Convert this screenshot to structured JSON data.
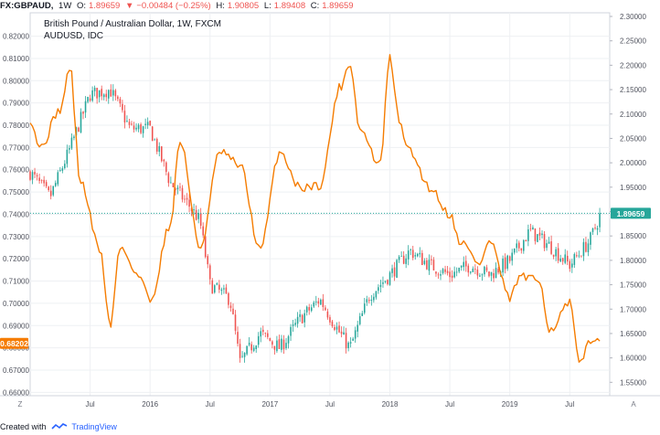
{
  "header": {
    "symbol": "FX:GBPAUD,",
    "interval": "1W",
    "open_label": "O:",
    "open_value": "1.89659",
    "change_icon": "triangle-down-icon",
    "change_text": "−0.00484 (−0.25%)",
    "high_label": "H:",
    "high_value": "1.90805",
    "low_label": "L:",
    "low_value": "1.89408",
    "close_label": "C:",
    "close_value": "1.89659"
  },
  "legend": {
    "main_title": "British Pound / Australian Dollar, 1W, FXCM",
    "overlay_title": "AUDUSD, IDC"
  },
  "footer": {
    "created_with": "Created with",
    "brand": "TradingView",
    "brand_icon": "tradingview-logo-icon"
  },
  "chart_data": {
    "type": "candlestick+line",
    "series": [
      {
        "name": "GBPAUD (FX:GBPAUD, 1W, FXCM)",
        "style": "candlestick",
        "axis": "right",
        "anchors": [
          {
            "date": "2015-01",
            "value": 1.98
          },
          {
            "date": "2015-03",
            "value": 1.93
          },
          {
            "date": "2015-05",
            "value": 2.03
          },
          {
            "date": "2015-07",
            "value": 2.14
          },
          {
            "date": "2015-09",
            "value": 2.15
          },
          {
            "date": "2015-11",
            "value": 2.07
          },
          {
            "date": "2016-01",
            "value": 2.07
          },
          {
            "date": "2016-03",
            "value": 1.96
          },
          {
            "date": "2016-05",
            "value": 1.91
          },
          {
            "date": "2016-06",
            "value": 1.88
          },
          {
            "date": "2016-07",
            "value": 1.75
          },
          {
            "date": "2016-09",
            "value": 1.72
          },
          {
            "date": "2016-10",
            "value": 1.59
          },
          {
            "date": "2016-12",
            "value": 1.65
          },
          {
            "date": "2017-02",
            "value": 1.62
          },
          {
            "date": "2017-04",
            "value": 1.68
          },
          {
            "date": "2017-06",
            "value": 1.72
          },
          {
            "date": "2017-08",
            "value": 1.65
          },
          {
            "date": "2017-09",
            "value": 1.62
          },
          {
            "date": "2017-11",
            "value": 1.73
          },
          {
            "date": "2018-01",
            "value": 1.77
          },
          {
            "date": "2018-03",
            "value": 1.82
          },
          {
            "date": "2018-05",
            "value": 1.79
          },
          {
            "date": "2018-07",
            "value": 1.77
          },
          {
            "date": "2018-09",
            "value": 1.79
          },
          {
            "date": "2018-11",
            "value": 1.77
          },
          {
            "date": "2019-01",
            "value": 1.8
          },
          {
            "date": "2019-03",
            "value": 1.86
          },
          {
            "date": "2019-05",
            "value": 1.83
          },
          {
            "date": "2019-07",
            "value": 1.79
          },
          {
            "date": "2019-09",
            "value": 1.84
          },
          {
            "date": "2019-10",
            "value": 1.89
          }
        ],
        "last_value": 1.89659
      },
      {
        "name": "AUDUSD (IDC)",
        "style": "line",
        "color": "#f57c00",
        "axis": "left",
        "anchors": [
          {
            "date": "2015-01",
            "value": 0.783
          },
          {
            "date": "2015-02",
            "value": 0.77
          },
          {
            "date": "2015-04",
            "value": 0.787
          },
          {
            "date": "2015-05",
            "value": 0.806
          },
          {
            "date": "2015-06",
            "value": 0.755
          },
          {
            "date": "2015-08",
            "value": 0.724
          },
          {
            "date": "2015-09",
            "value": 0.69
          },
          {
            "date": "2015-10",
            "value": 0.725
          },
          {
            "date": "2015-12",
            "value": 0.712
          },
          {
            "date": "2016-01",
            "value": 0.701
          },
          {
            "date": "2016-03",
            "value": 0.735
          },
          {
            "date": "2016-04",
            "value": 0.773
          },
          {
            "date": "2016-06",
            "value": 0.725
          },
          {
            "date": "2016-08",
            "value": 0.768
          },
          {
            "date": "2016-10",
            "value": 0.762
          },
          {
            "date": "2016-12",
            "value": 0.724
          },
          {
            "date": "2017-02",
            "value": 0.768
          },
          {
            "date": "2017-04",
            "value": 0.752
          },
          {
            "date": "2017-06",
            "value": 0.753
          },
          {
            "date": "2017-08",
            "value": 0.797
          },
          {
            "date": "2017-09",
            "value": 0.808
          },
          {
            "date": "2017-10",
            "value": 0.778
          },
          {
            "date": "2017-12",
            "value": 0.762
          },
          {
            "date": "2018-01",
            "value": 0.81
          },
          {
            "date": "2018-02",
            "value": 0.78
          },
          {
            "date": "2018-03",
            "value": 0.768
          },
          {
            "date": "2018-05",
            "value": 0.752
          },
          {
            "date": "2018-07",
            "value": 0.74
          },
          {
            "date": "2018-08",
            "value": 0.728
          },
          {
            "date": "2018-10",
            "value": 0.718
          },
          {
            "date": "2018-11",
            "value": 0.728
          },
          {
            "date": "2019-01",
            "value": 0.702
          },
          {
            "date": "2019-02",
            "value": 0.712
          },
          {
            "date": "2019-04",
            "value": 0.71
          },
          {
            "date": "2019-05",
            "value": 0.688
          },
          {
            "date": "2019-07",
            "value": 0.7
          },
          {
            "date": "2019-08",
            "value": 0.672
          },
          {
            "date": "2019-09",
            "value": 0.684
          },
          {
            "date": "2019-10",
            "value": 0.682
          }
        ],
        "last_value": 0.68202
      }
    ],
    "left_axis": {
      "ticks": [
        "0.82000",
        "0.81000",
        "0.80000",
        "0.79000",
        "0.78000",
        "0.77000",
        "0.76000",
        "0.75000",
        "0.74000",
        "0.73000",
        "0.72000",
        "0.71000",
        "0.70000",
        "0.69000",
        "0.68000",
        "0.67000",
        "0.66000"
      ],
      "range": [
        0.6585,
        0.8305
      ],
      "last_label": "0.68202"
    },
    "right_axis": {
      "ticks": [
        "2.30000",
        "2.25000",
        "2.20000",
        "2.15000",
        "2.10000",
        "2.05000",
        "2.00000",
        "1.95000",
        "1.90000",
        "1.85000",
        "1.80000",
        "1.75000",
        "1.70000",
        "1.65000",
        "1.60000",
        "1.55000"
      ],
      "range": [
        1.5225,
        2.3075
      ],
      "last_label": "1.89659"
    },
    "x_axis": {
      "ticks": [
        {
          "label": "Jul",
          "date": "2015-07"
        },
        {
          "label": "2016",
          "date": "2016-01"
        },
        {
          "label": "Jul",
          "date": "2016-07"
        },
        {
          "label": "2017",
          "date": "2017-01"
        },
        {
          "label": "Jul",
          "date": "2017-07"
        },
        {
          "label": "2018",
          "date": "2018-01"
        },
        {
          "label": "Jul",
          "date": "2018-07"
        },
        {
          "label": "2019",
          "date": "2019-01"
        },
        {
          "label": "Jul",
          "date": "2019-07"
        }
      ],
      "range_start": "2015-01",
      "range_end": "2019-11"
    },
    "price_line": {
      "value": 1.89659,
      "style": "dotted",
      "color": "#26a69a"
    },
    "corner_left": "Z",
    "corner_right": "A",
    "up_color": "#26a69a",
    "down_color": "#ef5350",
    "grid": true
  }
}
